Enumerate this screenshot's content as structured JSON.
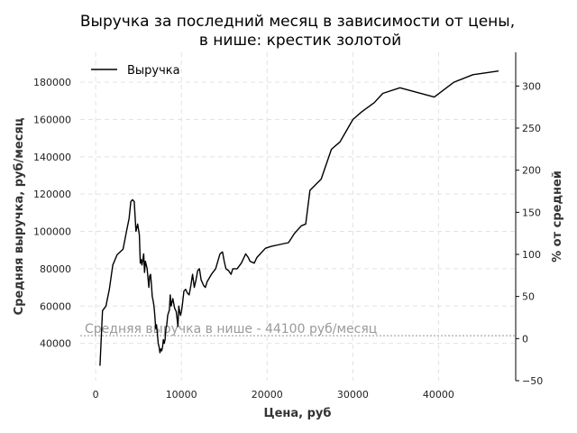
{
  "chart_data": {
    "type": "line",
    "title_line1": "Выручка за последний месяц в зависимости от цены,",
    "title_line2": "в нише: крестик золотой",
    "xlabel": "Цена, руб",
    "ylabel": "Средняя выручка, руб/месяц",
    "y2label": "% от средней",
    "xlim": [
      -1800,
      49000
    ],
    "ylim": [
      20000,
      196000
    ],
    "y2lim": [
      -50,
      340
    ],
    "x_ticks": [
      0,
      10000,
      20000,
      30000,
      40000
    ],
    "y_ticks": [
      40000,
      60000,
      80000,
      100000,
      120000,
      140000,
      160000,
      180000
    ],
    "y2_ticks": [
      -50,
      0,
      50,
      100,
      150,
      200,
      250,
      300
    ],
    "grid": true,
    "legend_position": "top-left",
    "reference_line": {
      "value": 44100,
      "label": "Средняя выручка в нише - 44100 руб/месяц",
      "color": "#aaaaaa"
    },
    "series": [
      {
        "name": "Выручка",
        "color": "#000000",
        "x": [
          500,
          800,
          1200,
          1600,
          2000,
          2500,
          3200,
          3600,
          3900,
          4100,
          4300,
          4500,
          4700,
          4900,
          5100,
          5200,
          5300,
          5400,
          5600,
          5700,
          5800,
          6000,
          6200,
          6300,
          6400,
          6500,
          6600,
          6700,
          6800,
          6900,
          7000,
          7100,
          7200,
          7300,
          7400,
          7500,
          7600,
          7700,
          7800,
          7900,
          8000,
          8100,
          8200,
          8300,
          8400,
          8600,
          8700,
          8800,
          9000,
          9200,
          9400,
          9600,
          9700,
          9800,
          9900,
          10000,
          10100,
          10300,
          10500,
          10700,
          10900,
          11100,
          11300,
          11500,
          11700,
          11900,
          12100,
          12300,
          12600,
          12800,
          13000,
          13500,
          14000,
          14500,
          14800,
          15000,
          15200,
          15500,
          15800,
          16000,
          16500,
          17000,
          17500,
          17800,
          18000,
          18500,
          18800,
          19200,
          19800,
          20500,
          21500,
          22500,
          23200,
          24000,
          24500,
          25000,
          26300,
          27500,
          28500,
          30000,
          31000,
          32500,
          33500,
          35500,
          39500,
          41800,
          44000,
          47000
        ],
        "y": [
          28000,
          57500,
          60000,
          69000,
          82000,
          87500,
          90500,
          100000,
          107000,
          116000,
          117000,
          116000,
          100000,
          104000,
          98000,
          83000,
          85000,
          82000,
          88000,
          78000,
          84000,
          80000,
          70000,
          76000,
          77000,
          72000,
          65000,
          63000,
          60000,
          55000,
          48000,
          50000,
          45000,
          40000,
          38000,
          35000,
          37000,
          36000,
          38000,
          42000,
          40000,
          42000,
          48000,
          50000,
          55000,
          58000,
          66000,
          60000,
          64000,
          59000,
          57000,
          49000,
          60000,
          57000,
          55000,
          57000,
          60000,
          68000,
          69000,
          67000,
          66000,
          71000,
          77000,
          70000,
          74000,
          79000,
          80000,
          74000,
          71000,
          70000,
          73000,
          77000,
          80000,
          88000,
          89000,
          84000,
          80000,
          79000,
          77000,
          80000,
          80000,
          83000,
          88000,
          86000,
          84000,
          83000,
          86000,
          88000,
          91000,
          92000,
          93000,
          94000,
          99000,
          103000,
          104000,
          122000,
          128000,
          144000,
          148000,
          160000,
          164000,
          169000,
          174000,
          177000,
          172000,
          180000,
          184000,
          186000
        ]
      }
    ]
  },
  "legend": {
    "label": "Выручка"
  }
}
